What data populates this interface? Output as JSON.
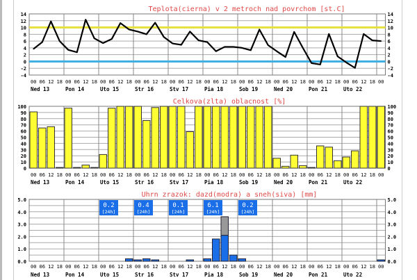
{
  "hours": [
    "00",
    "06",
    "12",
    "18"
  ],
  "final_hour": "00",
  "days": [
    "Ned 13",
    "Pon 14",
    "Uto 15",
    "Str 16",
    "Stv 17",
    "Pia 18",
    "Sob 19",
    "Ned 20",
    "Pon 21",
    "Uto 22"
  ],
  "chart_data": [
    {
      "type": "line",
      "title": "Teplota(cierna) v 2 metroch nad povrchom [st.C]",
      "ylim": [
        -4,
        14
      ],
      "yticks": [
        "14",
        "12",
        "10",
        "8",
        "6",
        "4",
        "2",
        "0",
        "-2",
        "-4"
      ],
      "reference_lines": [
        {
          "value": 10,
          "color": "#e8e040"
        },
        {
          "value": 0,
          "color": "#40b0e0"
        }
      ],
      "series": [
        {
          "name": "Teplota",
          "color": "#000000",
          "values": [
            3.7,
            5.7,
            11.8,
            6.0,
            3.4,
            2.7,
            12.3,
            6.8,
            5.4,
            6.6,
            11.3,
            9.4,
            8.8,
            8.0,
            11.4,
            7.2,
            5.3,
            4.9,
            8.8,
            6.2,
            5.7,
            3.0,
            4.3,
            4.3,
            4.0,
            3.3,
            9.4,
            4.8,
            3.0,
            1.3,
            8.7,
            4.0,
            -0.5,
            -0.9,
            8.1,
            1.5,
            -0.3,
            -1.9,
            8.1,
            6.2,
            6.0
          ]
        }
      ]
    },
    {
      "type": "bar",
      "title": "Celkova(zlta) oblacnost [%]",
      "ylim": [
        0,
        100
      ],
      "yticks": [
        "100",
        "90",
        "80",
        "70",
        "60",
        "50",
        "40",
        "30",
        "20",
        "10",
        "0"
      ],
      "series": [
        {
          "name": "Oblacnost",
          "color": "#ffff33",
          "values": [
            91,
            65,
            67,
            0,
            97,
            1,
            5,
            1,
            22,
            97,
            100,
            100,
            100,
            77,
            98,
            100,
            100,
            100,
            59,
            100,
            100,
            100,
            100,
            100,
            100,
            100,
            100,
            100,
            16,
            3,
            21,
            4,
            1,
            36,
            34,
            12,
            18,
            28,
            100,
            100,
            100
          ]
        }
      ]
    },
    {
      "type": "bar",
      "title": "Uhrn zrazok: dazd(modra) a sneh(siva) [mm]",
      "ylim": [
        0,
        5
      ],
      "yticks": [
        "5.0",
        "4.0",
        "3.0",
        "2.0",
        "1.0",
        "0.0"
      ],
      "series": [
        {
          "name": "dazd",
          "color": "#1a6ee8",
          "values": [
            0,
            0,
            0,
            0,
            0,
            0,
            0,
            0,
            0,
            0,
            0,
            0.2,
            0.1,
            0.2,
            0.1,
            0,
            0,
            0,
            0.1,
            0,
            0.2,
            1.8,
            2.1,
            0.5,
            0.2,
            0,
            0,
            0,
            0,
            0,
            0,
            0,
            0,
            0,
            0,
            0,
            0,
            0,
            0,
            0,
            0.1
          ]
        },
        {
          "name": "sneh",
          "color": "#999999",
          "values": [
            0,
            0,
            0,
            0,
            0,
            0,
            0,
            0,
            0,
            0,
            0,
            0,
            0,
            0,
            0,
            0,
            0,
            0,
            0,
            0,
            0,
            0,
            1.5,
            0,
            0,
            0,
            0,
            0,
            0,
            0,
            0,
            0,
            0,
            0,
            0,
            0,
            0,
            0,
            0,
            0,
            0
          ]
        }
      ],
      "daily_totals": [
        {
          "day_index": 2,
          "value": "0.2",
          "period": "[24h]"
        },
        {
          "day_index": 3,
          "value": "0.4",
          "period": "[24h]"
        },
        {
          "day_index": 4,
          "value": "0.1",
          "period": "[24h]"
        },
        {
          "day_index": 5,
          "value": "6.1",
          "period": "[24h]"
        },
        {
          "day_index": 6,
          "value": "0.2",
          "period": "[24h]"
        }
      ]
    }
  ]
}
